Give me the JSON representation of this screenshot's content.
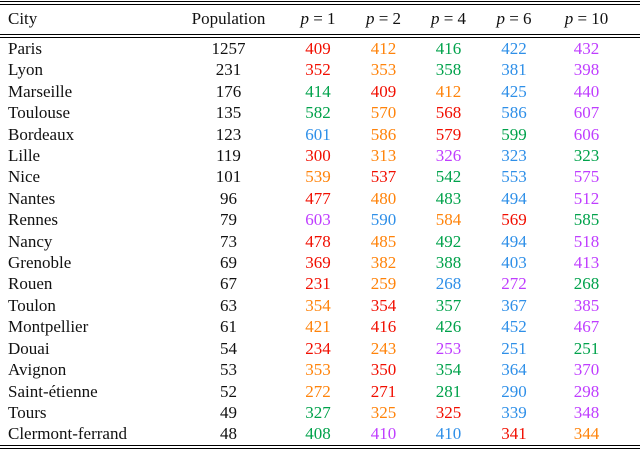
{
  "colors": {
    "red": "#f10e00",
    "orange": "#ff830a",
    "green": "#00a24b",
    "blue": "#2e8fe8",
    "magenta": "#bf3dff",
    "text": "#111111",
    "rule": "#000000"
  },
  "table": {
    "columns": [
      {
        "label": "City"
      },
      {
        "label": "Population"
      },
      {
        "math": true,
        "symbol": "p",
        "rest": "= 1"
      },
      {
        "math": true,
        "symbol": "p",
        "rest": "= 2"
      },
      {
        "math": true,
        "symbol": "p",
        "rest": "= 4"
      },
      {
        "math": true,
        "symbol": "p",
        "rest": "= 6"
      },
      {
        "math": true,
        "symbol": "p",
        "rest": "= 10"
      }
    ],
    "rows": [
      {
        "city": "Paris",
        "population": "1257",
        "values": [
          {
            "v": "409",
            "c": "red"
          },
          {
            "v": "412",
            "c": "orange"
          },
          {
            "v": "416",
            "c": "green"
          },
          {
            "v": "422",
            "c": "blue"
          },
          {
            "v": "432",
            "c": "magenta"
          }
        ]
      },
      {
        "city": "Lyon",
        "population": "231",
        "values": [
          {
            "v": "352",
            "c": "red"
          },
          {
            "v": "353",
            "c": "orange"
          },
          {
            "v": "358",
            "c": "green"
          },
          {
            "v": "381",
            "c": "blue"
          },
          {
            "v": "398",
            "c": "magenta"
          }
        ]
      },
      {
        "city": "Marseille",
        "population": "176",
        "values": [
          {
            "v": "414",
            "c": "green"
          },
          {
            "v": "409",
            "c": "red"
          },
          {
            "v": "412",
            "c": "orange"
          },
          {
            "v": "425",
            "c": "blue"
          },
          {
            "v": "440",
            "c": "magenta"
          }
        ]
      },
      {
        "city": "Toulouse",
        "population": "135",
        "values": [
          {
            "v": "582",
            "c": "green"
          },
          {
            "v": "570",
            "c": "orange"
          },
          {
            "v": "568",
            "c": "red"
          },
          {
            "v": "586",
            "c": "blue"
          },
          {
            "v": "607",
            "c": "magenta"
          }
        ]
      },
      {
        "city": "Bordeaux",
        "population": "123",
        "values": [
          {
            "v": "601",
            "c": "blue"
          },
          {
            "v": "586",
            "c": "orange"
          },
          {
            "v": "579",
            "c": "red"
          },
          {
            "v": "599",
            "c": "green"
          },
          {
            "v": "606",
            "c": "magenta"
          }
        ]
      },
      {
        "city": "Lille",
        "population": "119",
        "values": [
          {
            "v": "300",
            "c": "red"
          },
          {
            "v": "313",
            "c": "orange"
          },
          {
            "v": "326",
            "c": "magenta"
          },
          {
            "v": "323",
            "c": "blue"
          },
          {
            "v": "323",
            "c": "green"
          }
        ]
      },
      {
        "city": "Nice",
        "population": "101",
        "values": [
          {
            "v": "539",
            "c": "orange"
          },
          {
            "v": "537",
            "c": "red"
          },
          {
            "v": "542",
            "c": "green"
          },
          {
            "v": "553",
            "c": "blue"
          },
          {
            "v": "575",
            "c": "magenta"
          }
        ]
      },
      {
        "city": "Nantes",
        "population": "96",
        "values": [
          {
            "v": "477",
            "c": "red"
          },
          {
            "v": "480",
            "c": "orange"
          },
          {
            "v": "483",
            "c": "green"
          },
          {
            "v": "494",
            "c": "blue"
          },
          {
            "v": "512",
            "c": "magenta"
          }
        ]
      },
      {
        "city": "Rennes",
        "population": "79",
        "values": [
          {
            "v": "603",
            "c": "magenta"
          },
          {
            "v": "590",
            "c": "blue"
          },
          {
            "v": "584",
            "c": "orange"
          },
          {
            "v": "569",
            "c": "red"
          },
          {
            "v": "585",
            "c": "green"
          }
        ]
      },
      {
        "city": "Nancy",
        "population": "73",
        "values": [
          {
            "v": "478",
            "c": "red"
          },
          {
            "v": "485",
            "c": "orange"
          },
          {
            "v": "492",
            "c": "green"
          },
          {
            "v": "494",
            "c": "blue"
          },
          {
            "v": "518",
            "c": "magenta"
          }
        ]
      },
      {
        "city": "Grenoble",
        "population": "69",
        "values": [
          {
            "v": "369",
            "c": "red"
          },
          {
            "v": "382",
            "c": "orange"
          },
          {
            "v": "388",
            "c": "green"
          },
          {
            "v": "403",
            "c": "blue"
          },
          {
            "v": "413",
            "c": "magenta"
          }
        ]
      },
      {
        "city": "Rouen",
        "population": "67",
        "values": [
          {
            "v": "231",
            "c": "red"
          },
          {
            "v": "259",
            "c": "orange"
          },
          {
            "v": "268",
            "c": "blue"
          },
          {
            "v": "272",
            "c": "magenta"
          },
          {
            "v": "268",
            "c": "green"
          }
        ]
      },
      {
        "city": "Toulon",
        "population": "63",
        "values": [
          {
            "v": "354",
            "c": "orange"
          },
          {
            "v": "354",
            "c": "red"
          },
          {
            "v": "357",
            "c": "green"
          },
          {
            "v": "367",
            "c": "blue"
          },
          {
            "v": "385",
            "c": "magenta"
          }
        ]
      },
      {
        "city": "Montpellier",
        "population": "61",
        "values": [
          {
            "v": "421",
            "c": "orange"
          },
          {
            "v": "416",
            "c": "red"
          },
          {
            "v": "426",
            "c": "green"
          },
          {
            "v": "452",
            "c": "blue"
          },
          {
            "v": "467",
            "c": "magenta"
          }
        ]
      },
      {
        "city": "Douai",
        "population": "54",
        "values": [
          {
            "v": "234",
            "c": "red"
          },
          {
            "v": "243",
            "c": "orange"
          },
          {
            "v": "253",
            "c": "magenta"
          },
          {
            "v": "251",
            "c": "blue"
          },
          {
            "v": "251",
            "c": "green"
          }
        ]
      },
      {
        "city": "Avignon",
        "population": "53",
        "values": [
          {
            "v": "353",
            "c": "orange"
          },
          {
            "v": "350",
            "c": "red"
          },
          {
            "v": "354",
            "c": "green"
          },
          {
            "v": "364",
            "c": "blue"
          },
          {
            "v": "370",
            "c": "magenta"
          }
        ]
      },
      {
        "city": "Saint-étienne",
        "population": "52",
        "values": [
          {
            "v": "272",
            "c": "orange"
          },
          {
            "v": "271",
            "c": "red"
          },
          {
            "v": "281",
            "c": "green"
          },
          {
            "v": "290",
            "c": "blue"
          },
          {
            "v": "298",
            "c": "magenta"
          }
        ]
      },
      {
        "city": "Tours",
        "population": "49",
        "values": [
          {
            "v": "327",
            "c": "green"
          },
          {
            "v": "325",
            "c": "orange"
          },
          {
            "v": "325",
            "c": "red"
          },
          {
            "v": "339",
            "c": "blue"
          },
          {
            "v": "348",
            "c": "magenta"
          }
        ]
      },
      {
        "city": "Clermont-ferrand",
        "population": "48",
        "values": [
          {
            "v": "408",
            "c": "green"
          },
          {
            "v": "410",
            "c": "magenta"
          },
          {
            "v": "410",
            "c": "blue"
          },
          {
            "v": "341",
            "c": "red"
          },
          {
            "v": "344",
            "c": "orange"
          }
        ]
      }
    ]
  }
}
